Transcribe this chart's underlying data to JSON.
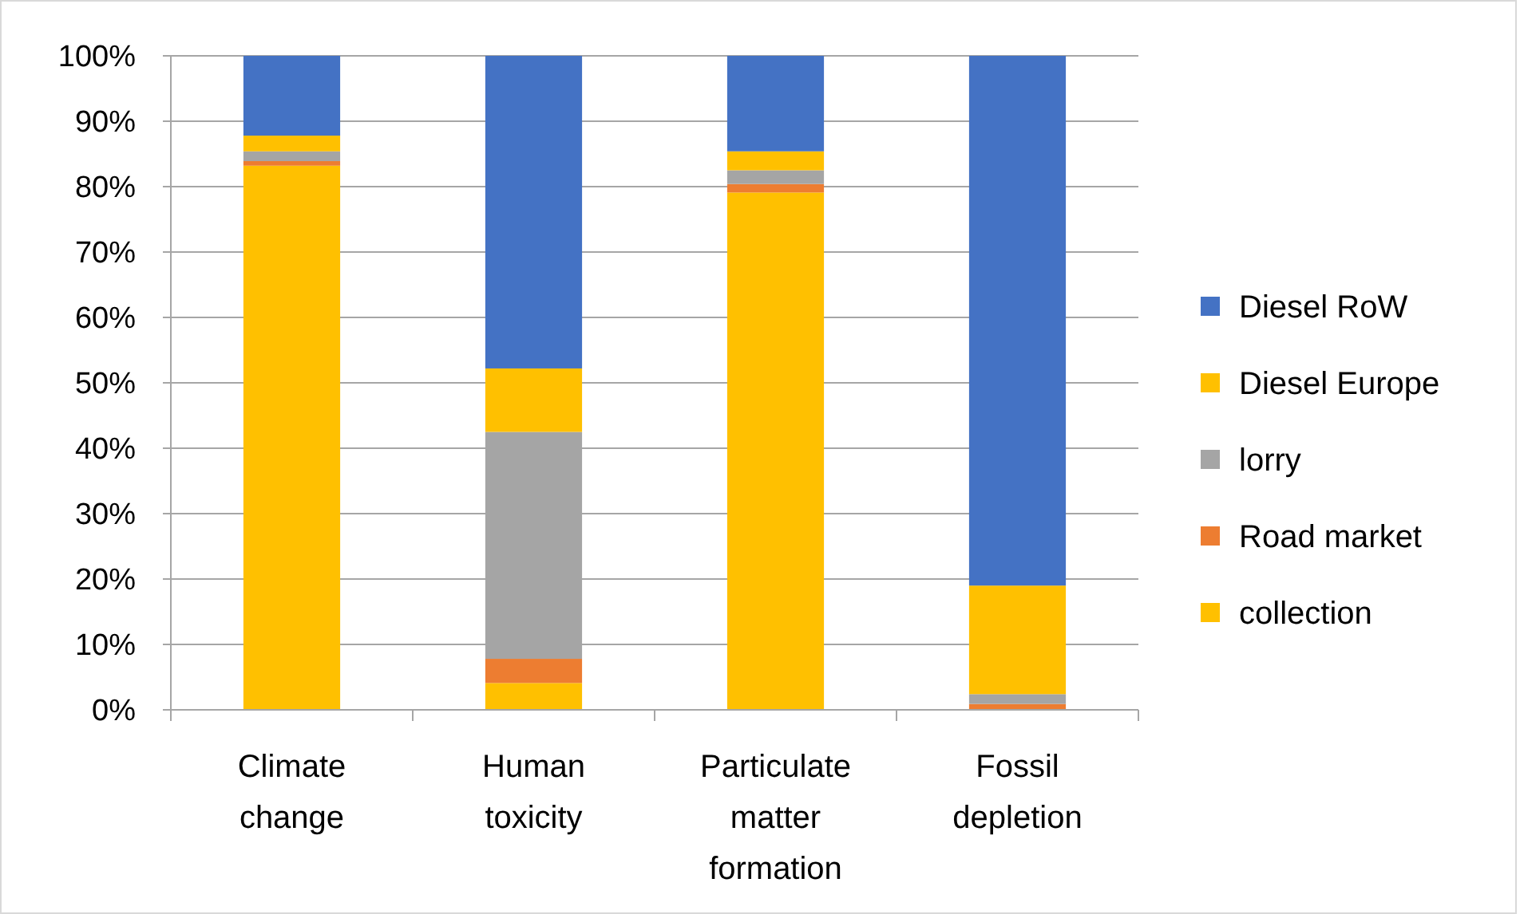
{
  "chart_data": {
    "type": "bar",
    "stacked": true,
    "categories": [
      "Climate change",
      "Human toxicity",
      "Particulate matter formation",
      "Fossil depletion"
    ],
    "series": [
      {
        "name": "collection",
        "color": "#ffc000",
        "values": [
          83.2,
          4.1,
          79.1,
          0
        ]
      },
      {
        "name": "Road market",
        "color": "#ed7d31",
        "values": [
          0.7,
          3.7,
          1.3,
          0.9
        ]
      },
      {
        "name": "lorry",
        "color": "#a5a5a5",
        "values": [
          1.5,
          34.7,
          2.1,
          1.5
        ]
      },
      {
        "name": "Diesel Europe",
        "color": "#ffc000",
        "values": [
          2.4,
          9.7,
          2.9,
          16.6
        ]
      },
      {
        "name": "Diesel RoW",
        "color": "#4472c4",
        "values": [
          12.2,
          47.8,
          14.6,
          81.0
        ]
      }
    ],
    "ylim": [
      0,
      100
    ],
    "yticks": [
      {
        "value": 0,
        "label": "0%"
      },
      {
        "value": 10,
        "label": "10%"
      },
      {
        "value": 20,
        "label": "20%"
      },
      {
        "value": 30,
        "label": "30%"
      },
      {
        "value": 40,
        "label": "40%"
      },
      {
        "value": 50,
        "label": "50%"
      },
      {
        "value": 60,
        "label": "60%"
      },
      {
        "value": 70,
        "label": "70%"
      },
      {
        "value": 80,
        "label": "80%"
      },
      {
        "value": 90,
        "label": "90%"
      },
      {
        "value": 100,
        "label": "100%"
      }
    ],
    "grid": "y",
    "legend": "right"
  }
}
